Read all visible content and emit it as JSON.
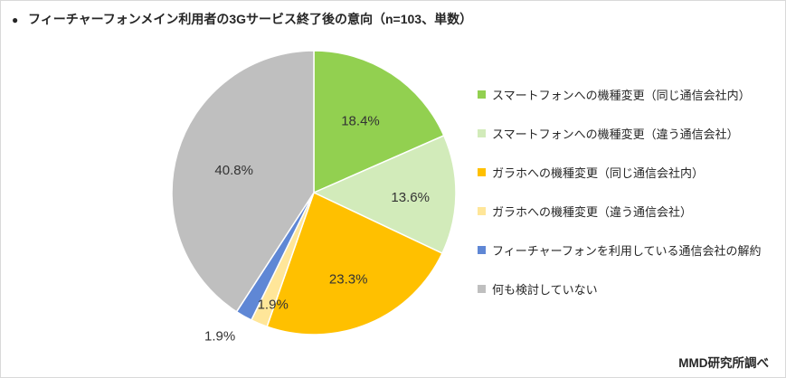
{
  "title_bullet": "●",
  "source": "MMD研究所調べ",
  "chart_data": {
    "type": "pie",
    "title": "フィーチャーフォンメイン利用者の3Gサービス終了後の意向（n=103、単数）",
    "categories": [
      "スマートフォンへの機種変更（同じ通信会社内）",
      "スマートフォンへの機種変更（違う通信会社）",
      "ガラホへの機種変更（同じ通信会社内）",
      "ガラホへの機種変更（違う通信会社）",
      "フィーチャーフォンを利用している通信会社の解約",
      "何も検討していない"
    ],
    "values": [
      18.4,
      13.6,
      23.3,
      1.9,
      1.9,
      40.8
    ],
    "labels": [
      "18.4%",
      "13.6%",
      "23.3%",
      "1.9%",
      "1.9%",
      "40.8%"
    ],
    "colors": [
      "#92D050",
      "#D2EBBA",
      "#FFC000",
      "#FFE699",
      "#5F87D5",
      "#BFBFBF"
    ],
    "legend_position": "right"
  }
}
